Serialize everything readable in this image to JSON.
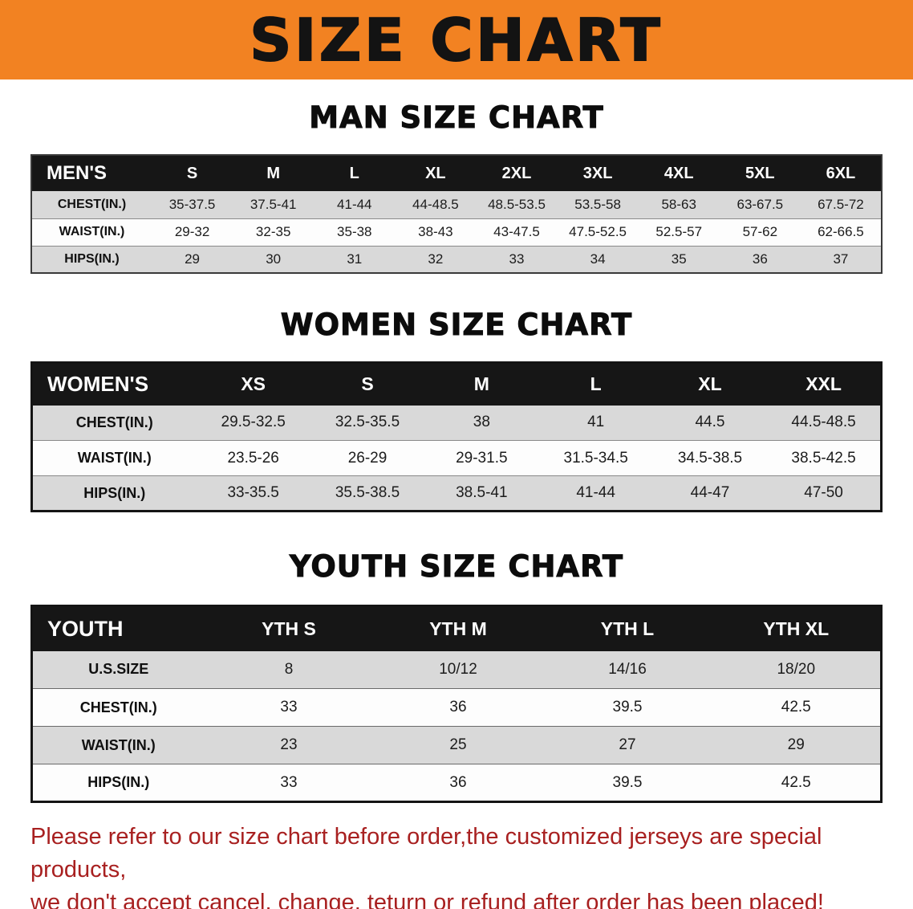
{
  "banner": {
    "title": "SIZE CHART",
    "bg_color": "#f28222",
    "text_color": "#131313"
  },
  "sections": [
    {
      "heading": "MAN SIZE CHART",
      "table": {
        "header": [
          "MEN'S",
          "S",
          "M",
          "L",
          "XL",
          "2XL",
          "3XL",
          "4XL",
          "5XL",
          "6XL"
        ],
        "rows": [
          [
            "CHEST(IN.)",
            "35-37.5",
            "37.5-41",
            "41-44",
            "44-48.5",
            "48.5-53.5",
            "53.5-58",
            "58-63",
            "63-67.5",
            "67.5-72"
          ],
          [
            "WAIST(IN.)",
            "29-32",
            "32-35",
            "35-38",
            "38-43",
            "43-47.5",
            "47.5-52.5",
            "52.5-57",
            "57-62",
            "62-66.5"
          ],
          [
            "HIPS(IN.)",
            "29",
            "30",
            "31",
            "32",
            "33",
            "34",
            "35",
            "36",
            "37"
          ]
        ]
      }
    },
    {
      "heading": "WOMEN SIZE CHART",
      "table": {
        "header": [
          "WOMEN'S",
          "XS",
          "S",
          "M",
          "L",
          "XL",
          "XXL"
        ],
        "rows": [
          [
            "CHEST(IN.)",
            "29.5-32.5",
            "32.5-35.5",
            "38",
            "41",
            "44.5",
            "44.5-48.5"
          ],
          [
            "WAIST(IN.)",
            "23.5-26",
            "26-29",
            "29-31.5",
            "31.5-34.5",
            "34.5-38.5",
            "38.5-42.5"
          ],
          [
            "HIPS(IN.)",
            "33-35.5",
            "35.5-38.5",
            "38.5-41",
            "41-44",
            "44-47",
            "47-50"
          ]
        ]
      }
    },
    {
      "heading": "YOUTH SIZE CHART",
      "table": {
        "header": [
          "YOUTH",
          "YTH S",
          "YTH M",
          "YTH L",
          "YTH XL"
        ],
        "rows": [
          [
            "U.S.SIZE",
            "8",
            "10/12",
            "14/16",
            "18/20"
          ],
          [
            "CHEST(IN.)",
            "33",
            "36",
            "39.5",
            "42.5"
          ],
          [
            "WAIST(IN.)",
            "23",
            "25",
            "27",
            "29"
          ],
          [
            "HIPS(IN.)",
            "33",
            "36",
            "39.5",
            "42.5"
          ]
        ]
      }
    }
  ],
  "footer": {
    "line1": "Please refer to our size chart before order,the customized jerseys are special products,",
    "line2": "we don't accept cancel, change, teturn or refund after order has been placed!",
    "text_color": "#a82020"
  },
  "colors": {
    "banner_orange": "#f28222",
    "header_band_black": "#161616",
    "row_stripe_gray": "#d9d9d9",
    "disclaimer_red": "#a82020"
  }
}
